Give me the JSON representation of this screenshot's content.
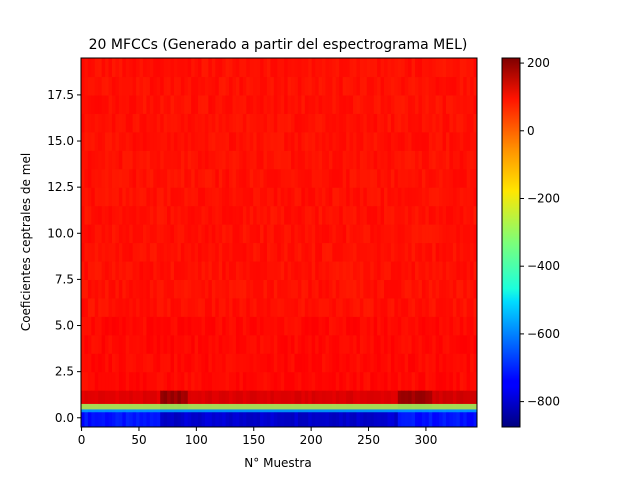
{
  "chart_data": {
    "type": "heatmap",
    "title": "20 MFCCs (Generado a partir del espectrograma MEL)",
    "xlabel": "N° Muestra",
    "ylabel": "Coeficientes ceptrales de mel",
    "xlim": [
      -0.5,
      344.5
    ],
    "ylim": [
      -0.5,
      19.5
    ],
    "x_ticks": [
      0,
      50,
      100,
      150,
      200,
      250,
      300
    ],
    "x_tick_labels": [
      "0",
      "50",
      "100",
      "150",
      "200",
      "250",
      "300"
    ],
    "y_ticks": [
      0.0,
      2.5,
      5.0,
      7.5,
      10.0,
      12.5,
      15.0,
      17.5
    ],
    "y_tick_labels": [
      "0.0",
      "2.5",
      "5.0",
      "7.5",
      "10.0",
      "12.5",
      "15.0",
      "17.5"
    ],
    "colormap": "jet",
    "colorbar": {
      "vmin": -875,
      "vmax": 215,
      "ticks": [
        200,
        0,
        -200,
        -400,
        -600,
        -800
      ],
      "tick_labels": [
        "200",
        "0",
        "−200",
        "−400",
        "−600",
        "−800"
      ]
    },
    "rows": {
      "0": "approximately -800 to -700 across all samples",
      "1": "approximately 100 to 200, darker (about 200) near samples 70-90 and 275-300",
      "2-19": "approximately 40 to 80, mostly uniform orange-red"
    },
    "segments": [
      {
        "from": 0,
        "to": 70,
        "row0": -720,
        "row1": 110
      },
      {
        "from": 70,
        "to": 275,
        "row0": -780,
        "row1": 120
      },
      {
        "from": 275,
        "to": 344,
        "row0": -720,
        "row1": 130
      }
    ]
  }
}
